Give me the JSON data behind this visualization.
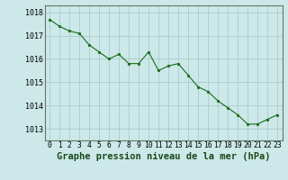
{
  "x": [
    0,
    1,
    2,
    3,
    4,
    5,
    6,
    7,
    8,
    9,
    10,
    11,
    12,
    13,
    14,
    15,
    16,
    17,
    18,
    19,
    20,
    21,
    22,
    23
  ],
  "y": [
    1017.7,
    1017.4,
    1017.2,
    1017.1,
    1016.6,
    1016.3,
    1016.0,
    1016.2,
    1015.8,
    1015.8,
    1016.3,
    1015.5,
    1015.7,
    1015.8,
    1015.3,
    1014.8,
    1014.6,
    1014.2,
    1013.9,
    1013.6,
    1013.2,
    1013.2,
    1013.4,
    1013.6
  ],
  "ylim": [
    1012.5,
    1018.3
  ],
  "yticks": [
    1013,
    1014,
    1015,
    1016,
    1017,
    1018
  ],
  "xticks": [
    0,
    1,
    2,
    3,
    4,
    5,
    6,
    7,
    8,
    9,
    10,
    11,
    12,
    13,
    14,
    15,
    16,
    17,
    18,
    19,
    20,
    21,
    22,
    23
  ],
  "line_color": "#1a6b1a",
  "marker_color": "#1a6b1a",
  "bg_color": "#cce8e8",
  "grid_color": "#aacccc",
  "xlabel": "Graphe pression niveau de la mer (hPa)",
  "xlabel_fontsize": 7.5,
  "tick_fontsize": 5.8,
  "ylabel_fontsize": 6.0
}
